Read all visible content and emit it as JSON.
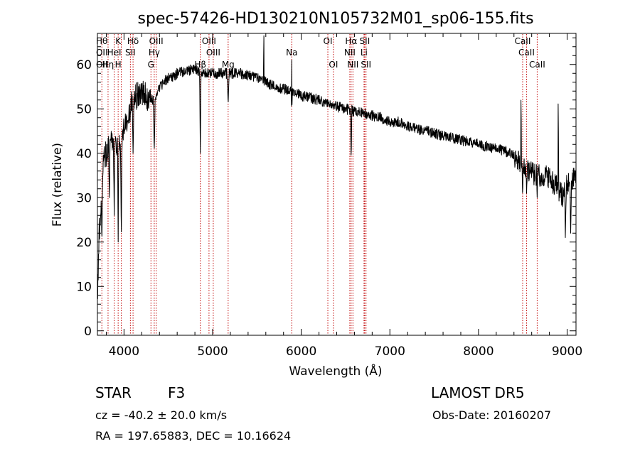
{
  "chart_data": {
    "type": "line",
    "title": "spec-57426-HD130210N105732M01_sp06-155.fits",
    "xlabel": "Wavelength (Å)",
    "ylabel": "Flux (relative)",
    "xlim": [
      3700,
      9100
    ],
    "ylim": [
      -1,
      67
    ],
    "x_ticks": [
      4000,
      5000,
      6000,
      7000,
      8000,
      9000
    ],
    "y_ticks": [
      0,
      10,
      20,
      30,
      40,
      50,
      60
    ],
    "grid": false,
    "line_color": "#000000",
    "marker_color": "#c00000",
    "continuum": [
      [
        3700,
        8
      ],
      [
        3720,
        22
      ],
      [
        3760,
        37
      ],
      [
        3800,
        40
      ],
      [
        3850,
        42
      ],
      [
        3900,
        43
      ],
      [
        3950,
        41
      ],
      [
        4000,
        45
      ],
      [
        4050,
        49
      ],
      [
        4100,
        52
      ],
      [
        4150,
        53
      ],
      [
        4200,
        54
      ],
      [
        4250,
        53
      ],
      [
        4300,
        52
      ],
      [
        4350,
        52
      ],
      [
        4400,
        55
      ],
      [
        4450,
        56
      ],
      [
        4500,
        57
      ],
      [
        4550,
        57
      ],
      [
        4600,
        58
      ],
      [
        4700,
        58.5
      ],
      [
        4800,
        59
      ],
      [
        4900,
        58
      ],
      [
        5000,
        58
      ],
      [
        5100,
        58
      ],
      [
        5200,
        58
      ],
      [
        5300,
        58
      ],
      [
        5400,
        57.5
      ],
      [
        5500,
        57
      ],
      [
        5600,
        56
      ],
      [
        5700,
        55
      ],
      [
        5800,
        54.5
      ],
      [
        5900,
        54
      ],
      [
        6000,
        53
      ],
      [
        6100,
        52.5
      ],
      [
        6200,
        52
      ],
      [
        6300,
        51
      ],
      [
        6400,
        50.5
      ],
      [
        6500,
        50
      ],
      [
        6600,
        49.5
      ],
      [
        6700,
        49
      ],
      [
        6800,
        48.5
      ],
      [
        6900,
        48
      ],
      [
        7000,
        47
      ],
      [
        7100,
        47
      ],
      [
        7200,
        46
      ],
      [
        7300,
        45.5
      ],
      [
        7400,
        45
      ],
      [
        7500,
        44.5
      ],
      [
        7600,
        44
      ],
      [
        7700,
        43.5
      ],
      [
        7800,
        43
      ],
      [
        7900,
        42.5
      ],
      [
        8000,
        42
      ],
      [
        8100,
        41.5
      ],
      [
        8200,
        41
      ],
      [
        8300,
        40.5
      ],
      [
        8400,
        39.5
      ],
      [
        8450,
        38
      ],
      [
        8500,
        37
      ],
      [
        8550,
        36
      ],
      [
        8600,
        35.5
      ],
      [
        8700,
        35
      ],
      [
        8800,
        34.5
      ],
      [
        8900,
        32
      ],
      [
        8950,
        30
      ],
      [
        9000,
        33
      ],
      [
        9050,
        34
      ],
      [
        9100,
        35
      ]
    ],
    "absorption": [
      {
        "x": 3750,
        "y": 20,
        "w": 10
      },
      {
        "x": 3835,
        "y": 30,
        "w": 8
      },
      {
        "x": 3889,
        "y": 26,
        "w": 8
      },
      {
        "x": 3934,
        "y": 20,
        "w": 7
      },
      {
        "x": 3969,
        "y": 19,
        "w": 7
      },
      {
        "x": 4102,
        "y": 40,
        "w": 10
      },
      {
        "x": 4341,
        "y": 40,
        "w": 10
      },
      {
        "x": 4861,
        "y": 40,
        "w": 8
      },
      {
        "x": 5175,
        "y": 51,
        "w": 12
      },
      {
        "x": 5893,
        "y": 49,
        "w": 8
      },
      {
        "x": 6563,
        "y": 38,
        "w": 8
      },
      {
        "x": 8498,
        "y": 30,
        "w": 6
      },
      {
        "x": 8542,
        "y": 31,
        "w": 6
      },
      {
        "x": 8662,
        "y": 30,
        "w": 6
      },
      {
        "x": 8980,
        "y": 21,
        "w": 8
      },
      {
        "x": 9040,
        "y": 22,
        "w": 8
      }
    ],
    "emission": [
      {
        "x": 5577,
        "y": 72,
        "w": 3
      },
      {
        "x": 5893,
        "y": 61,
        "w": 3
      },
      {
        "x": 8480,
        "y": 57,
        "w": 4
      },
      {
        "x": 8900,
        "y": 57,
        "w": 4
      }
    ],
    "lines": [
      {
        "x": 3750,
        "labels": [
          "Hθ",
          "OII",
          "OII"
        ]
      },
      {
        "x": 3820,
        "labels": [
          "",
          "",
          "Hη"
        ]
      },
      {
        "x": 3889,
        "labels": [
          "",
          "HeI",
          ""
        ]
      },
      {
        "x": 3934,
        "labels": [
          "K",
          "",
          "H"
        ]
      },
      {
        "x": 3969,
        "labels": [
          "",
          "",
          ""
        ]
      },
      {
        "x": 4072,
        "labels": [
          "",
          "SII",
          ""
        ]
      },
      {
        "x": 4102,
        "labels": [
          "Hδ",
          "",
          ""
        ]
      },
      {
        "x": 4304,
        "labels": [
          "",
          "",
          "G"
        ]
      },
      {
        "x": 4341,
        "labels": [
          "",
          "Hγ",
          ""
        ]
      },
      {
        "x": 4363,
        "labels": [
          "OIII",
          "",
          ""
        ]
      },
      {
        "x": 4861,
        "labels": [
          "",
          "",
          "Hβ"
        ]
      },
      {
        "x": 4959,
        "labels": [
          "OIII",
          "",
          ""
        ]
      },
      {
        "x": 5007,
        "labels": [
          "",
          "OIII",
          ""
        ]
      },
      {
        "x": 5175,
        "labels": [
          "",
          "",
          "Mg"
        ]
      },
      {
        "x": 5893,
        "labels": [
          "",
          "Na",
          ""
        ]
      },
      {
        "x": 6300,
        "labels": [
          "OI",
          "",
          ""
        ]
      },
      {
        "x": 6363,
        "labels": [
          "",
          "",
          "OI"
        ]
      },
      {
        "x": 6548,
        "labels": [
          "",
          "NII",
          ""
        ]
      },
      {
        "x": 6563,
        "labels": [
          "Hα",
          "",
          ""
        ]
      },
      {
        "x": 6583,
        "labels": [
          "",
          "",
          "NII"
        ]
      },
      {
        "x": 6708,
        "labels": [
          "",
          "Li",
          ""
        ]
      },
      {
        "x": 6716,
        "labels": [
          "SII",
          "",
          ""
        ]
      },
      {
        "x": 6731,
        "labels": [
          "",
          "",
          "SII"
        ]
      },
      {
        "x": 8498,
        "labels": [
          "CaII",
          "",
          ""
        ]
      },
      {
        "x": 8542,
        "labels": [
          "",
          "CaII",
          ""
        ]
      },
      {
        "x": 8662,
        "labels": [
          "",
          "",
          "CaII"
        ]
      }
    ]
  },
  "info": {
    "class_label": "STAR",
    "subclass": "F3",
    "survey": "LAMOST DR5",
    "redshift": "cz = -40.2 ± 20.0 km/s",
    "obs_date": "Obs-Date: 20160207",
    "coords": "RA = 197.65883, DEC =  10.16624"
  }
}
